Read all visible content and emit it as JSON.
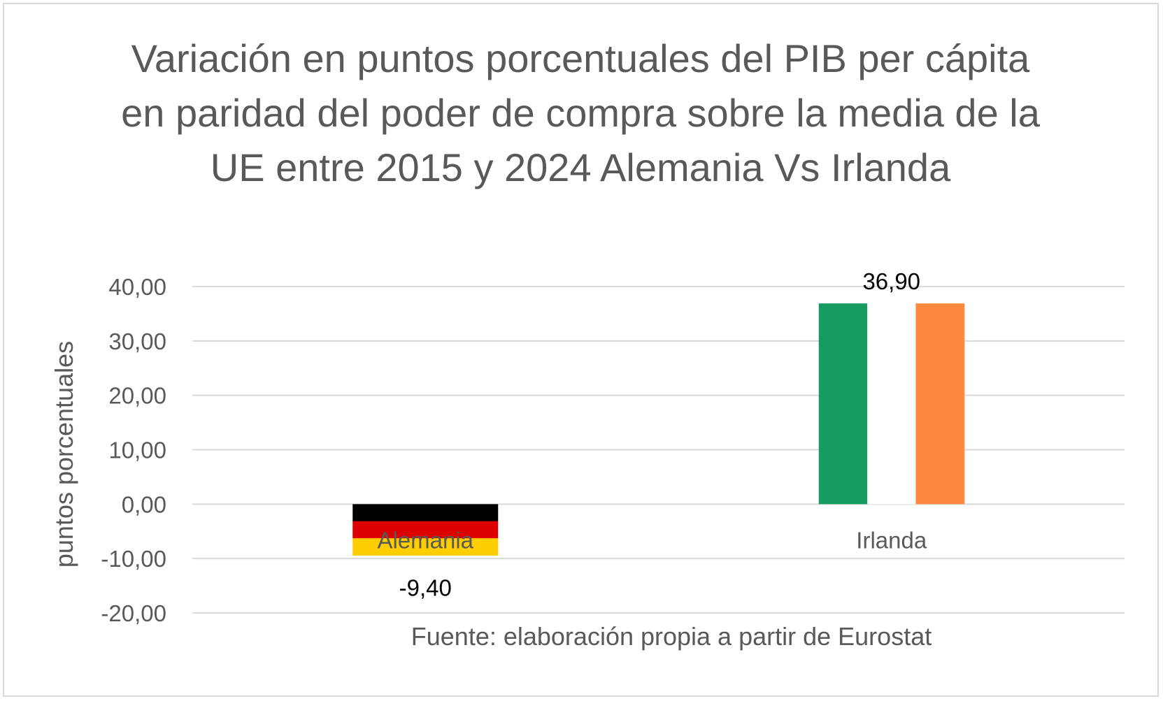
{
  "chart_data": {
    "type": "bar",
    "title": "Variación en puntos porcentuales del PIB per cápita en paridad del poder de compra sobre la media de la UE entre 2015 y 2024 Alemania Vs Irlanda",
    "ylabel": "puntos porcentuales",
    "xlabel": "Fuente: elaboración propia a partir de Eurostat",
    "categories": [
      "Alemania",
      "Irlanda"
    ],
    "values": [
      -9.4,
      36.9
    ],
    "data_labels": [
      "-9,40",
      "36,90"
    ],
    "ylim": [
      -20,
      40
    ],
    "yticks": [
      40,
      30,
      20,
      10,
      0,
      -10,
      -20
    ],
    "ytick_labels": [
      "40,00",
      "30,00",
      "20,00",
      "10,00",
      "0,00",
      "-10,00",
      "-20,00"
    ],
    "grid": true,
    "legend": "none",
    "bar_fills": {
      "Alemania": [
        "#000000",
        "#dd0000",
        "#ffce00"
      ],
      "Irlanda": [
        "#169b62",
        "#ffffff",
        "#ff883e"
      ]
    },
    "gridline_color": "#d9d9d9"
  }
}
